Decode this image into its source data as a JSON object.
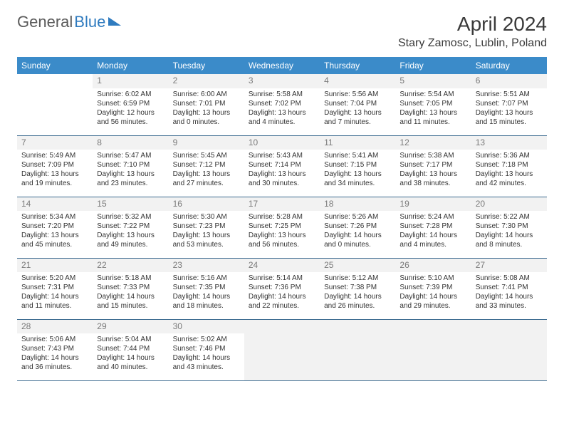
{
  "brand": {
    "part1": "General",
    "part2": "Blue"
  },
  "title": "April 2024",
  "location": "Stary Zamosc, Lublin, Poland",
  "colors": {
    "header_bg": "#3b8bc9",
    "header_text": "#ffffff",
    "border": "#3b6a8f",
    "daynum_bg": "#f2f2f2",
    "daynum_text": "#7a7a7a",
    "body_text": "#333333",
    "brand_gray": "#5a5a5a",
    "brand_blue": "#2f7bbf"
  },
  "weekdays": [
    "Sunday",
    "Monday",
    "Tuesday",
    "Wednesday",
    "Thursday",
    "Friday",
    "Saturday"
  ],
  "weeks": [
    [
      {
        "day": "",
        "sunrise": "",
        "sunset": "",
        "daylight1": "",
        "daylight2": ""
      },
      {
        "day": "1",
        "sunrise": "Sunrise: 6:02 AM",
        "sunset": "Sunset: 6:59 PM",
        "daylight1": "Daylight: 12 hours",
        "daylight2": "and 56 minutes."
      },
      {
        "day": "2",
        "sunrise": "Sunrise: 6:00 AM",
        "sunset": "Sunset: 7:01 PM",
        "daylight1": "Daylight: 13 hours",
        "daylight2": "and 0 minutes."
      },
      {
        "day": "3",
        "sunrise": "Sunrise: 5:58 AM",
        "sunset": "Sunset: 7:02 PM",
        "daylight1": "Daylight: 13 hours",
        "daylight2": "and 4 minutes."
      },
      {
        "day": "4",
        "sunrise": "Sunrise: 5:56 AM",
        "sunset": "Sunset: 7:04 PM",
        "daylight1": "Daylight: 13 hours",
        "daylight2": "and 7 minutes."
      },
      {
        "day": "5",
        "sunrise": "Sunrise: 5:54 AM",
        "sunset": "Sunset: 7:05 PM",
        "daylight1": "Daylight: 13 hours",
        "daylight2": "and 11 minutes."
      },
      {
        "day": "6",
        "sunrise": "Sunrise: 5:51 AM",
        "sunset": "Sunset: 7:07 PM",
        "daylight1": "Daylight: 13 hours",
        "daylight2": "and 15 minutes."
      }
    ],
    [
      {
        "day": "7",
        "sunrise": "Sunrise: 5:49 AM",
        "sunset": "Sunset: 7:09 PM",
        "daylight1": "Daylight: 13 hours",
        "daylight2": "and 19 minutes."
      },
      {
        "day": "8",
        "sunrise": "Sunrise: 5:47 AM",
        "sunset": "Sunset: 7:10 PM",
        "daylight1": "Daylight: 13 hours",
        "daylight2": "and 23 minutes."
      },
      {
        "day": "9",
        "sunrise": "Sunrise: 5:45 AM",
        "sunset": "Sunset: 7:12 PM",
        "daylight1": "Daylight: 13 hours",
        "daylight2": "and 27 minutes."
      },
      {
        "day": "10",
        "sunrise": "Sunrise: 5:43 AM",
        "sunset": "Sunset: 7:14 PM",
        "daylight1": "Daylight: 13 hours",
        "daylight2": "and 30 minutes."
      },
      {
        "day": "11",
        "sunrise": "Sunrise: 5:41 AM",
        "sunset": "Sunset: 7:15 PM",
        "daylight1": "Daylight: 13 hours",
        "daylight2": "and 34 minutes."
      },
      {
        "day": "12",
        "sunrise": "Sunrise: 5:38 AM",
        "sunset": "Sunset: 7:17 PM",
        "daylight1": "Daylight: 13 hours",
        "daylight2": "and 38 minutes."
      },
      {
        "day": "13",
        "sunrise": "Sunrise: 5:36 AM",
        "sunset": "Sunset: 7:18 PM",
        "daylight1": "Daylight: 13 hours",
        "daylight2": "and 42 minutes."
      }
    ],
    [
      {
        "day": "14",
        "sunrise": "Sunrise: 5:34 AM",
        "sunset": "Sunset: 7:20 PM",
        "daylight1": "Daylight: 13 hours",
        "daylight2": "and 45 minutes."
      },
      {
        "day": "15",
        "sunrise": "Sunrise: 5:32 AM",
        "sunset": "Sunset: 7:22 PM",
        "daylight1": "Daylight: 13 hours",
        "daylight2": "and 49 minutes."
      },
      {
        "day": "16",
        "sunrise": "Sunrise: 5:30 AM",
        "sunset": "Sunset: 7:23 PM",
        "daylight1": "Daylight: 13 hours",
        "daylight2": "and 53 minutes."
      },
      {
        "day": "17",
        "sunrise": "Sunrise: 5:28 AM",
        "sunset": "Sunset: 7:25 PM",
        "daylight1": "Daylight: 13 hours",
        "daylight2": "and 56 minutes."
      },
      {
        "day": "18",
        "sunrise": "Sunrise: 5:26 AM",
        "sunset": "Sunset: 7:26 PM",
        "daylight1": "Daylight: 14 hours",
        "daylight2": "and 0 minutes."
      },
      {
        "day": "19",
        "sunrise": "Sunrise: 5:24 AM",
        "sunset": "Sunset: 7:28 PM",
        "daylight1": "Daylight: 14 hours",
        "daylight2": "and 4 minutes."
      },
      {
        "day": "20",
        "sunrise": "Sunrise: 5:22 AM",
        "sunset": "Sunset: 7:30 PM",
        "daylight1": "Daylight: 14 hours",
        "daylight2": "and 8 minutes."
      }
    ],
    [
      {
        "day": "21",
        "sunrise": "Sunrise: 5:20 AM",
        "sunset": "Sunset: 7:31 PM",
        "daylight1": "Daylight: 14 hours",
        "daylight2": "and 11 minutes."
      },
      {
        "day": "22",
        "sunrise": "Sunrise: 5:18 AM",
        "sunset": "Sunset: 7:33 PM",
        "daylight1": "Daylight: 14 hours",
        "daylight2": "and 15 minutes."
      },
      {
        "day": "23",
        "sunrise": "Sunrise: 5:16 AM",
        "sunset": "Sunset: 7:35 PM",
        "daylight1": "Daylight: 14 hours",
        "daylight2": "and 18 minutes."
      },
      {
        "day": "24",
        "sunrise": "Sunrise: 5:14 AM",
        "sunset": "Sunset: 7:36 PM",
        "daylight1": "Daylight: 14 hours",
        "daylight2": "and 22 minutes."
      },
      {
        "day": "25",
        "sunrise": "Sunrise: 5:12 AM",
        "sunset": "Sunset: 7:38 PM",
        "daylight1": "Daylight: 14 hours",
        "daylight2": "and 26 minutes."
      },
      {
        "day": "26",
        "sunrise": "Sunrise: 5:10 AM",
        "sunset": "Sunset: 7:39 PM",
        "daylight1": "Daylight: 14 hours",
        "daylight2": "and 29 minutes."
      },
      {
        "day": "27",
        "sunrise": "Sunrise: 5:08 AM",
        "sunset": "Sunset: 7:41 PM",
        "daylight1": "Daylight: 14 hours",
        "daylight2": "and 33 minutes."
      }
    ],
    [
      {
        "day": "28",
        "sunrise": "Sunrise: 5:06 AM",
        "sunset": "Sunset: 7:43 PM",
        "daylight1": "Daylight: 14 hours",
        "daylight2": "and 36 minutes."
      },
      {
        "day": "29",
        "sunrise": "Sunrise: 5:04 AM",
        "sunset": "Sunset: 7:44 PM",
        "daylight1": "Daylight: 14 hours",
        "daylight2": "and 40 minutes."
      },
      {
        "day": "30",
        "sunrise": "Sunrise: 5:02 AM",
        "sunset": "Sunset: 7:46 PM",
        "daylight1": "Daylight: 14 hours",
        "daylight2": "and 43 minutes."
      },
      {
        "day": "",
        "sunrise": "",
        "sunset": "",
        "daylight1": "",
        "daylight2": "",
        "tail": true
      },
      {
        "day": "",
        "sunrise": "",
        "sunset": "",
        "daylight1": "",
        "daylight2": "",
        "tail": true
      },
      {
        "day": "",
        "sunrise": "",
        "sunset": "",
        "daylight1": "",
        "daylight2": "",
        "tail": true
      },
      {
        "day": "",
        "sunrise": "",
        "sunset": "",
        "daylight1": "",
        "daylight2": "",
        "tail": true
      }
    ]
  ]
}
